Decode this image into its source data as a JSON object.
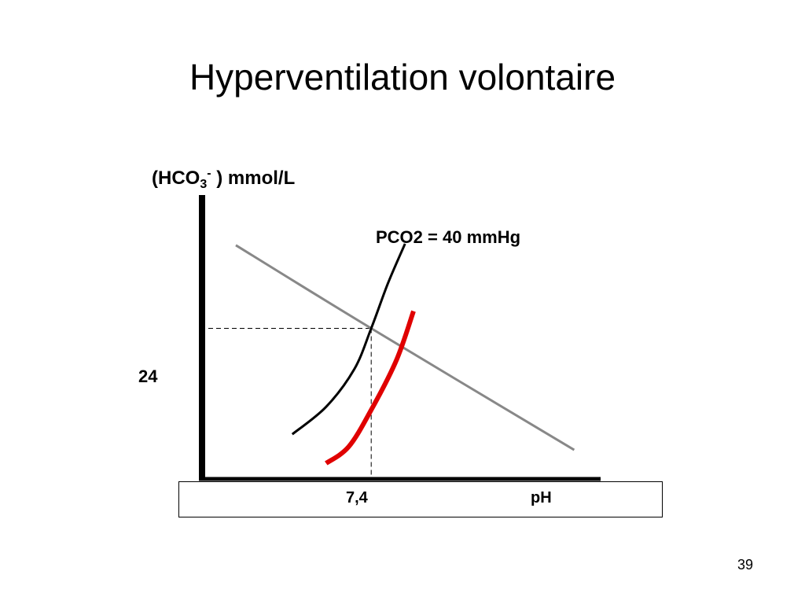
{
  "slide": {
    "title": "Hyperventilation volontaire",
    "page_number": "39"
  },
  "chart_data": {
    "type": "line",
    "ylabel_parts": {
      "open": "(HCO",
      "sub": "3",
      "sup": "-",
      "rest": " ) mmol/L"
    },
    "xlabel": "pH",
    "xticks": [
      "7,4"
    ],
    "yticks": [
      "24"
    ],
    "annotation": "PCO2 = 40 mmHg",
    "ref_point": {
      "x": 7.4,
      "y": 24
    },
    "x_range": [
      7.1,
      7.85
    ],
    "y_range": [
      5,
      40
    ],
    "series": [
      {
        "color": "#888888",
        "points": [
          [
            7.16,
            34.6
          ],
          [
            7.4,
            24.0
          ],
          [
            7.76,
            8.5
          ]
        ]
      },
      {
        "color": "#000000",
        "points": [
          [
            7.26,
            10.5
          ],
          [
            7.32,
            14.0
          ],
          [
            7.37,
            18.8
          ],
          [
            7.4,
            24.0
          ],
          [
            7.43,
            29.8
          ],
          [
            7.46,
            34.8
          ]
        ]
      },
      {
        "color": "#e00000",
        "points": [
          [
            7.32,
            6.8
          ],
          [
            7.36,
            8.9
          ],
          [
            7.4,
            13.6
          ],
          [
            7.445,
            20.0
          ],
          [
            7.475,
            26.2
          ]
        ]
      }
    ],
    "axis_color": "#000000"
  }
}
